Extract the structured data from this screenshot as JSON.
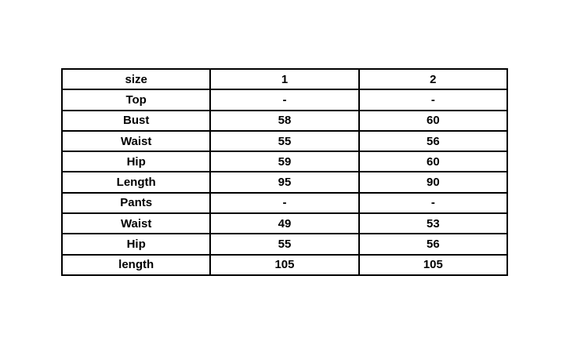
{
  "table": {
    "header": {
      "col0": "size",
      "col1": "1",
      "col2": "2"
    },
    "rows": [
      {
        "label": "Top",
        "size1": "-",
        "size2": "-"
      },
      {
        "label": "Bust",
        "size1": "58",
        "size2": "60"
      },
      {
        "label": "Waist",
        "size1": "55",
        "size2": "56"
      },
      {
        "label": "Hip",
        "size1": "59",
        "size2": "60"
      },
      {
        "label": "Length",
        "size1": "95",
        "size2": "90"
      },
      {
        "label": "Pants",
        "size1": "-",
        "size2": "-"
      },
      {
        "label": "Waist",
        "size1": "49",
        "size2": "53"
      },
      {
        "label": "Hip",
        "size1": "55",
        "size2": "56"
      },
      {
        "label": "length",
        "size1": "105",
        "size2": "105"
      }
    ],
    "colors": {
      "border": "#000000",
      "text": "#000000",
      "background": "#ffffff"
    }
  }
}
